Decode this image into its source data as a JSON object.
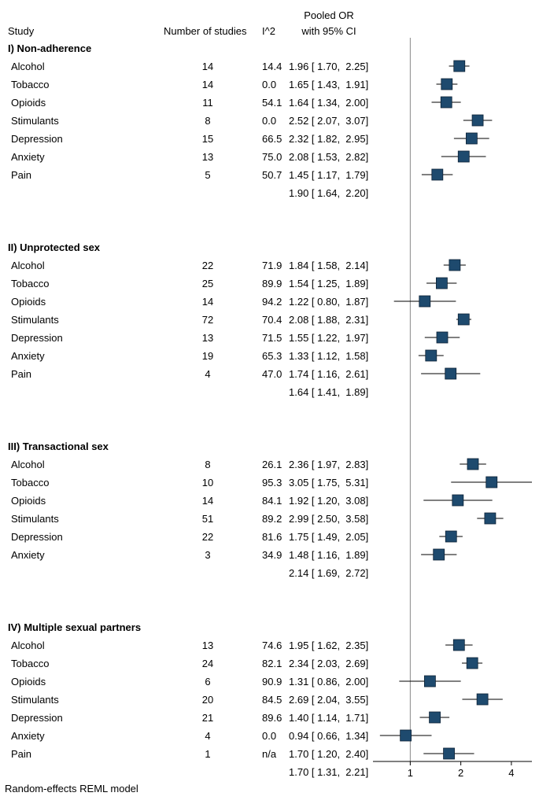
{
  "chart_data": {
    "type": "forest",
    "headers": {
      "study": "Study",
      "n_studies": "Number of studies",
      "i2": "I^2",
      "or_line1": "Pooled OR",
      "or_line2": "with 95% CI"
    },
    "x_scale": "log",
    "xlim": [
      0.6,
      5.3
    ],
    "x_ticks": [
      {
        "value": 1,
        "label": "1"
      },
      {
        "value": 2,
        "label": "2"
      },
      {
        "value": 4,
        "label": "4"
      }
    ],
    "reference_line": 1,
    "footnote": "Random-effects REML model",
    "groups": [
      {
        "title": "I) Non-adherence",
        "rows": [
          {
            "study": "Alcohol",
            "n": "14",
            "i2": "14.4",
            "or_text": "1.96 [ 1.70,  2.25]",
            "or": 1.96,
            "lo": 1.7,
            "hi": 2.25
          },
          {
            "study": "Tobacco",
            "n": "14",
            "i2": "0.0",
            "or_text": "1.65 [ 1.43,  1.91]",
            "or": 1.65,
            "lo": 1.43,
            "hi": 1.91
          },
          {
            "study": "Opioids",
            "n": "11",
            "i2": "54.1",
            "or_text": "1.64 [ 1.34,  2.00]",
            "or": 1.64,
            "lo": 1.34,
            "hi": 2.0
          },
          {
            "study": "Stimulants",
            "n": "8",
            "i2": "0.0",
            "or_text": "2.52 [ 2.07,  3.07]",
            "or": 2.52,
            "lo": 2.07,
            "hi": 3.07
          },
          {
            "study": "Depression",
            "n": "15",
            "i2": "66.5",
            "or_text": "2.32 [ 1.82,  2.95]",
            "or": 2.32,
            "lo": 1.82,
            "hi": 2.95
          },
          {
            "study": "Anxiety",
            "n": "13",
            "i2": "75.0",
            "or_text": "2.08 [ 1.53,  2.82]",
            "or": 2.08,
            "lo": 1.53,
            "hi": 2.82
          },
          {
            "study": "Pain",
            "n": "5",
            "i2": "50.7",
            "or_text": "1.45 [ 1.17,  1.79]",
            "or": 1.45,
            "lo": 1.17,
            "hi": 1.79
          }
        ],
        "pooled_text": "1.90 [ 1.64,  2.20]"
      },
      {
        "title": "II) Unprotected sex",
        "rows": [
          {
            "study": "Alcohol",
            "n": "22",
            "i2": "71.9",
            "or_text": "1.84 [ 1.58,  2.14]",
            "or": 1.84,
            "lo": 1.58,
            "hi": 2.14
          },
          {
            "study": "Tobacco",
            "n": "25",
            "i2": "89.9",
            "or_text": "1.54 [ 1.25,  1.89]",
            "or": 1.54,
            "lo": 1.25,
            "hi": 1.89
          },
          {
            "study": "Opioids",
            "n": "14",
            "i2": "94.2",
            "or_text": "1.22 [ 0.80,  1.87]",
            "or": 1.22,
            "lo": 0.8,
            "hi": 1.87
          },
          {
            "study": "Stimulants",
            "n": "72",
            "i2": "70.4",
            "or_text": "2.08 [ 1.88,  2.31]",
            "or": 2.08,
            "lo": 1.88,
            "hi": 2.31
          },
          {
            "study": "Depression",
            "n": "13",
            "i2": "71.5",
            "or_text": "1.55 [ 1.22,  1.97]",
            "or": 1.55,
            "lo": 1.22,
            "hi": 1.97
          },
          {
            "study": "Anxiety",
            "n": "19",
            "i2": "65.3",
            "or_text": "1.33 [ 1.12,  1.58]",
            "or": 1.33,
            "lo": 1.12,
            "hi": 1.58
          },
          {
            "study": "Pain",
            "n": "4",
            "i2": "47.0",
            "or_text": "1.74 [ 1.16,  2.61]",
            "or": 1.74,
            "lo": 1.16,
            "hi": 2.61
          }
        ],
        "pooled_text": "1.64 [ 1.41,  1.89]"
      },
      {
        "title": "III) Transactional sex",
        "rows": [
          {
            "study": "Alcohol",
            "n": "8",
            "i2": "26.1",
            "or_text": "2.36 [ 1.97,  2.83]",
            "or": 2.36,
            "lo": 1.97,
            "hi": 2.83
          },
          {
            "study": "Tobacco",
            "n": "10",
            "i2": "95.3",
            "or_text": "3.05 [ 1.75,  5.31]",
            "or": 3.05,
            "lo": 1.75,
            "hi": 5.31
          },
          {
            "study": "Opioids",
            "n": "14",
            "i2": "84.1",
            "or_text": "1.92 [ 1.20,  3.08]",
            "or": 1.92,
            "lo": 1.2,
            "hi": 3.08
          },
          {
            "study": "Stimulants",
            "n": "51",
            "i2": "89.2",
            "or_text": "2.99 [ 2.50,  3.58]",
            "or": 2.99,
            "lo": 2.5,
            "hi": 3.58
          },
          {
            "study": "Depression",
            "n": "22",
            "i2": "81.6",
            "or_text": "1.75 [ 1.49,  2.05]",
            "or": 1.75,
            "lo": 1.49,
            "hi": 2.05
          },
          {
            "study": "Anxiety",
            "n": "3",
            "i2": "34.9",
            "or_text": "1.48 [ 1.16,  1.89]",
            "or": 1.48,
            "lo": 1.16,
            "hi": 1.89
          }
        ],
        "pooled_text": "2.14 [ 1.69,  2.72]"
      },
      {
        "title": "IV) Multiple sexual partners",
        "rows": [
          {
            "study": "Alcohol",
            "n": "13",
            "i2": "74.6",
            "or_text": "1.95 [ 1.62,  2.35]",
            "or": 1.95,
            "lo": 1.62,
            "hi": 2.35
          },
          {
            "study": "Tobacco",
            "n": "24",
            "i2": "82.1",
            "or_text": "2.34 [ 2.03,  2.69]",
            "or": 2.34,
            "lo": 2.03,
            "hi": 2.69
          },
          {
            "study": "Opioids",
            "n": "6",
            "i2": "90.9",
            "or_text": "1.31 [ 0.86,  2.00]",
            "or": 1.31,
            "lo": 0.86,
            "hi": 2.0
          },
          {
            "study": "Stimulants",
            "n": "20",
            "i2": "84.5",
            "or_text": "2.69 [ 2.04,  3.55]",
            "or": 2.69,
            "lo": 2.04,
            "hi": 3.55
          },
          {
            "study": "Depression",
            "n": "21",
            "i2": "89.6",
            "or_text": "1.40 [ 1.14,  1.71]",
            "or": 1.4,
            "lo": 1.14,
            "hi": 1.71
          },
          {
            "study": "Anxiety",
            "n": "4",
            "i2": "0.0",
            "or_text": "0.94 [ 0.66,  1.34]",
            "or": 0.94,
            "lo": 0.66,
            "hi": 1.34
          },
          {
            "study": "Pain",
            "n": "1",
            "i2": "n/a",
            "or_text": "1.70 [ 1.20,  2.40]",
            "or": 1.7,
            "lo": 1.2,
            "hi": 2.4
          }
        ],
        "pooled_text": "1.70 [ 1.31,  2.21]"
      }
    ]
  },
  "colors": {
    "marker": "#1e4a6e",
    "marker_edge": "#0d2236",
    "line": "#000000",
    "ref_line": "#888888"
  }
}
